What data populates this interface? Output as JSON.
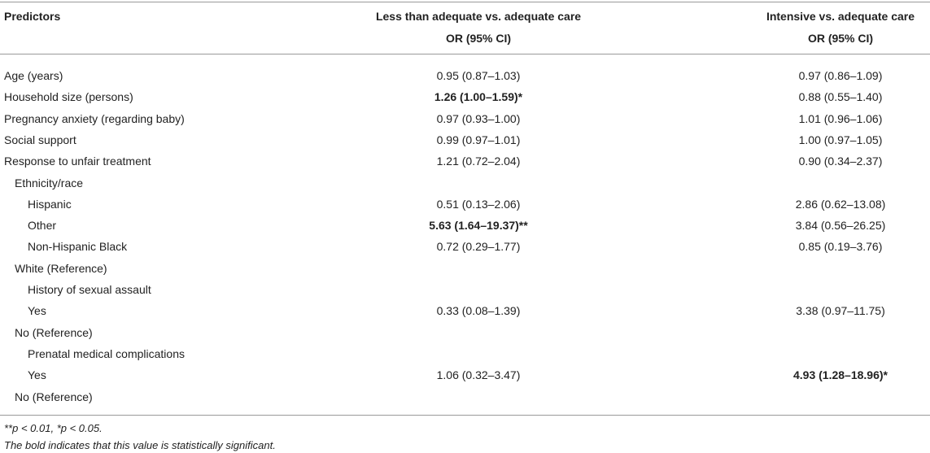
{
  "table": {
    "header": {
      "predictor": "Predictors",
      "less": [
        "Less than adequate vs. adequate care",
        "OR (95% CI)"
      ],
      "intensive": [
        "Intensive vs. adequate care",
        "OR (95% CI)"
      ]
    },
    "rows": [
      {
        "predictor": "Age (years)",
        "level": 0,
        "less": "0.95 (0.87–1.03)",
        "intensive": "0.97 (0.86–1.09)"
      },
      {
        "predictor": "Household size (persons)",
        "level": 0,
        "less": "1.26 (1.00–1.59)*",
        "intensive": "0.88 (0.55–1.40)",
        "bold": [
          "less"
        ]
      },
      {
        "predictor": "Pregnancy anxiety (regarding baby)",
        "level": 0,
        "less": "0.97 (0.93–1.00)",
        "intensive": "1.01 (0.96–1.06)"
      },
      {
        "predictor": "Social support",
        "level": 0,
        "less": "0.99 (0.97–1.01)",
        "intensive": "1.00 (0.97–1.05)"
      },
      {
        "predictor": "Response to unfair treatment",
        "level": 0,
        "less": "1.21 (0.72–2.04)",
        "intensive": "0.90 (0.34–2.37)"
      },
      {
        "predictor": "Ethnicity/race",
        "level": 1
      },
      {
        "predictor": "Hispanic",
        "level": 2,
        "less": "0.51 (0.13–2.06)",
        "intensive": "2.86 (0.62–13.08)"
      },
      {
        "predictor": "Other",
        "level": 2,
        "less": "5.63 (1.64–19.37)**",
        "intensive": "3.84 (0.56–26.25)",
        "bold": [
          "less"
        ]
      },
      {
        "predictor": "Non-Hispanic Black",
        "level": 2,
        "less": "0.72 (0.29–1.77)",
        "intensive": "0.85 (0.19–3.76)"
      },
      {
        "predictor": "White (Reference)",
        "level": 1
      },
      {
        "predictor": "History of sexual assault",
        "level": 2
      },
      {
        "predictor": "Yes",
        "level": 2,
        "less": "0.33 (0.08–1.39)",
        "intensive": "3.38 (0.97–11.75)"
      },
      {
        "predictor": "No (Reference)",
        "level": 1
      },
      {
        "predictor": "Prenatal medical complications",
        "level": 2
      },
      {
        "predictor": "Yes",
        "level": 2,
        "less": "1.06 (0.32–3.47)",
        "intensive": "4.93 (1.28–18.96)*",
        "bold": [
          "intensive"
        ]
      },
      {
        "predictor": "No (Reference)",
        "level": 1
      }
    ],
    "footnotes": [
      "**p < 0.01, *p < 0.05.",
      "The bold indicates that this value is statistically significant."
    ]
  }
}
